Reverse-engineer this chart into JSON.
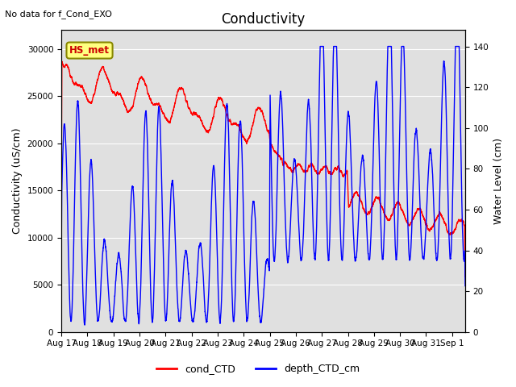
{
  "title": "Conductivity",
  "top_left_text": "No data for f_Cond_EXO",
  "ylabel_left": "Conductivity (uS/cm)",
  "ylabel_right": "Water Level (cm)",
  "ylim_left": [
    0,
    32000
  ],
  "ylim_right": [
    0,
    148
  ],
  "x_tick_labels": [
    "Aug 17",
    "Aug 18",
    "Aug 19",
    "Aug 20",
    "Aug 21",
    "Aug 22",
    "Aug 23",
    "Aug 24",
    "Aug 25",
    "Aug 26",
    "Aug 27",
    "Aug 28",
    "Aug 29",
    "Aug 30",
    "Aug 31",
    "Sep 1"
  ],
  "yticks_left": [
    0,
    5000,
    10000,
    15000,
    20000,
    25000,
    30000
  ],
  "yticks_right": [
    0,
    20,
    40,
    60,
    80,
    100,
    120,
    140
  ],
  "background_color": "#ffffff",
  "plot_bg_color": "#e0e0e0",
  "station_label": "HS_met",
  "station_label_facecolor": "#ffff80",
  "station_label_edgecolor": "#888800",
  "legend_entries": [
    "cond_CTD",
    "depth_CTD_cm"
  ],
  "legend_colors": [
    "#ff0000",
    "#0000ff"
  ],
  "line_width": 1.0,
  "title_fontsize": 12,
  "label_fontsize": 9,
  "tick_fontsize": 7.5
}
